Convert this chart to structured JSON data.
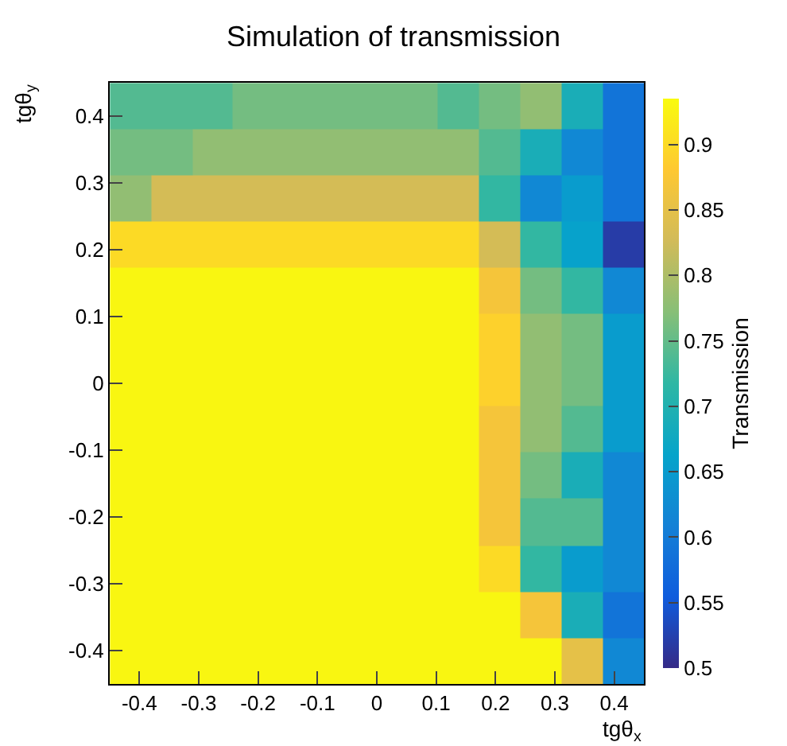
{
  "chart_data": {
    "type": "heatmap",
    "title": "Simulation of transmission",
    "xlabel": "tgθ$_{x}$",
    "ylabel": "tgθ$_{y}$",
    "clabel": "Transmission",
    "x": [
      -0.415,
      -0.346,
      -0.277,
      -0.208,
      -0.138,
      -0.069,
      0,
      0.069,
      0.138,
      0.208,
      0.277,
      0.346,
      0.415
    ],
    "y": [
      0.415,
      0.346,
      0.277,
      0.208,
      0.138,
      0.069,
      0,
      -0.069,
      -0.138,
      -0.208,
      -0.277,
      -0.346,
      -0.415
    ],
    "cells": [
      [
        0.74,
        0.74,
        0.74,
        0.76,
        0.76,
        0.76,
        0.76,
        0.76,
        0.74,
        0.76,
        0.78,
        0.69,
        0.59
      ],
      [
        0.76,
        0.76,
        0.78,
        0.78,
        0.78,
        0.78,
        0.78,
        0.78,
        0.78,
        0.74,
        0.69,
        0.62,
        0.59
      ],
      [
        0.78,
        0.83,
        0.83,
        0.83,
        0.83,
        0.83,
        0.83,
        0.83,
        0.83,
        0.72,
        0.62,
        0.65,
        0.59
      ],
      [
        0.9,
        0.9,
        0.9,
        0.9,
        0.9,
        0.9,
        0.9,
        0.9,
        0.9,
        0.83,
        0.72,
        0.66,
        0.52
      ],
      [
        0.93,
        0.93,
        0.93,
        0.93,
        0.93,
        0.93,
        0.93,
        0.93,
        0.93,
        0.87,
        0.76,
        0.72,
        0.62
      ],
      [
        0.93,
        0.93,
        0.93,
        0.93,
        0.93,
        0.93,
        0.93,
        0.93,
        0.93,
        0.89,
        0.78,
        0.76,
        0.65
      ],
      [
        0.93,
        0.93,
        0.93,
        0.93,
        0.93,
        0.93,
        0.93,
        0.93,
        0.93,
        0.89,
        0.78,
        0.76,
        0.65
      ],
      [
        0.93,
        0.93,
        0.93,
        0.93,
        0.93,
        0.93,
        0.93,
        0.93,
        0.93,
        0.87,
        0.78,
        0.74,
        0.65
      ],
      [
        0.93,
        0.93,
        0.93,
        0.93,
        0.93,
        0.93,
        0.93,
        0.93,
        0.93,
        0.87,
        0.76,
        0.69,
        0.62
      ],
      [
        0.93,
        0.93,
        0.93,
        0.93,
        0.93,
        0.93,
        0.93,
        0.93,
        0.93,
        0.87,
        0.74,
        0.74,
        0.62
      ],
      [
        0.93,
        0.93,
        0.93,
        0.93,
        0.93,
        0.93,
        0.93,
        0.93,
        0.93,
        0.9,
        0.72,
        0.65,
        0.62
      ],
      [
        0.93,
        0.93,
        0.93,
        0.93,
        0.93,
        0.93,
        0.93,
        0.93,
        0.93,
        0.93,
        0.87,
        0.69,
        0.59
      ],
      [
        0.93,
        0.93,
        0.93,
        0.93,
        0.93,
        0.93,
        0.93,
        0.93,
        0.93,
        0.93,
        0.93,
        0.85,
        0.62
      ]
    ],
    "xlim": [
      -0.45,
      0.45
    ],
    "xticks": [
      -0.4,
      -0.3,
      -0.2,
      -0.1,
      0,
      0.1,
      0.2,
      0.3,
      0.4
    ],
    "ylim": [
      -0.45,
      0.45
    ],
    "yticks": [
      -0.4,
      -0.3,
      -0.2,
      -0.1,
      0,
      0.1,
      0.2,
      0.3,
      0.4
    ],
    "clim": [
      0.5,
      0.935
    ],
    "cticks": [
      0.5,
      0.55,
      0.6,
      0.65,
      0.7,
      0.75,
      0.8,
      0.85,
      0.9
    ]
  }
}
